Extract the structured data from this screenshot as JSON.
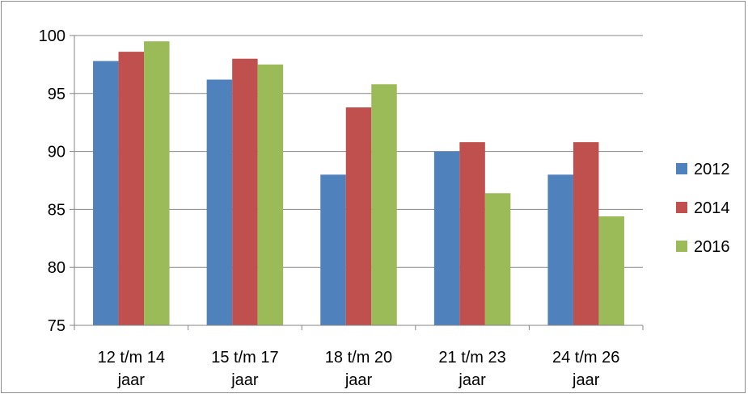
{
  "chart_data": {
    "type": "bar",
    "categories": [
      "12 t/m 14 jaar",
      "15 t/m 17 jaar",
      "18 t/m 20 jaar",
      "21 t/m 23 jaar",
      "24 t/m 26 jaar"
    ],
    "category_lines": [
      [
        "12 t/m 14",
        "jaar"
      ],
      [
        "15 t/m 17",
        "jaar"
      ],
      [
        "18 t/m 20",
        "jaar"
      ],
      [
        "21 t/m 23",
        "jaar"
      ],
      [
        "24 t/m 26",
        "jaar"
      ]
    ],
    "series": [
      {
        "name": "2012",
        "color": "#4f81bd",
        "values": [
          97.8,
          96.2,
          88.0,
          90.0,
          88.0
        ]
      },
      {
        "name": "2014",
        "color": "#c0504d",
        "values": [
          98.6,
          98.0,
          93.8,
          90.8,
          90.8
        ]
      },
      {
        "name": "2016",
        "color": "#9bbb59",
        "values": [
          99.5,
          97.5,
          95.8,
          86.4,
          84.4
        ]
      }
    ],
    "ylim": [
      75,
      100
    ],
    "yticks": [
      75,
      80,
      85,
      90,
      95,
      100
    ],
    "ytick_labels": [
      "75",
      "80",
      "85",
      "90",
      "95",
      "100"
    ],
    "grid": true,
    "legend_position": "right",
    "title": "",
    "xlabel": "",
    "ylabel": ""
  }
}
